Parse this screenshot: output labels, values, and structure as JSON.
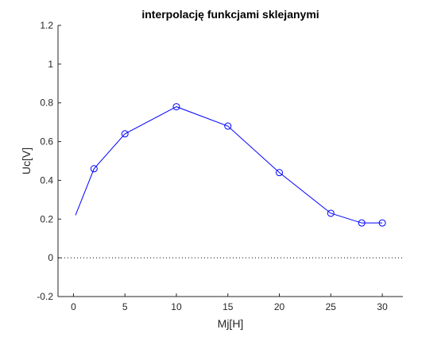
{
  "chart_data": {
    "type": "line",
    "title": "interpolację funkcjami sklejanymi",
    "xlabel": "Mj[H]",
    "ylabel": "Uc[V]",
    "xlim": [
      -1.5,
      32
    ],
    "ylim": [
      -0.2,
      1.2
    ],
    "x_ticks": [
      "0",
      "5",
      "10",
      "15",
      "20",
      "25",
      "30"
    ],
    "y_ticks": [
      "-0.2",
      "0",
      "0.2",
      "0.4",
      "0.6",
      "0.8",
      "1",
      "1.2"
    ],
    "grid": false,
    "legend": "none",
    "reference_line": {
      "y": 0,
      "style": "dotted",
      "color": "#000000"
    },
    "series": [
      {
        "kind": "markers",
        "marker": "circle",
        "color": "#0000ff",
        "points": [
          {
            "x": 2,
            "y": 0.46
          },
          {
            "x": 5,
            "y": 0.64
          },
          {
            "x": 10,
            "y": 0.78
          },
          {
            "x": 15,
            "y": 0.68
          },
          {
            "x": 20,
            "y": 0.44
          },
          {
            "x": 25,
            "y": 0.23
          },
          {
            "x": 28,
            "y": 0.18
          },
          {
            "x": 30,
            "y": 0.18
          }
        ]
      },
      {
        "kind": "line",
        "color": "#0000ff",
        "points": [
          {
            "x": 0.2,
            "y": 0.22
          },
          {
            "x": 2,
            "y": 0.46
          },
          {
            "x": 5,
            "y": 0.64
          },
          {
            "x": 10,
            "y": 0.78
          },
          {
            "x": 15,
            "y": 0.68
          },
          {
            "x": 20,
            "y": 0.44
          },
          {
            "x": 25,
            "y": 0.23
          },
          {
            "x": 28,
            "y": 0.18
          },
          {
            "x": 30,
            "y": 0.18
          }
        ]
      }
    ]
  }
}
